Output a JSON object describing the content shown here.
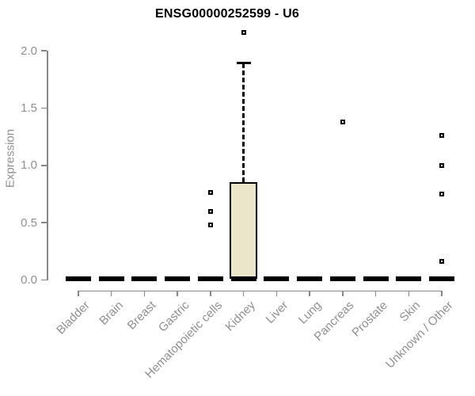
{
  "chart_data": {
    "type": "boxplot",
    "title": "ENSG00000252599 - U6",
    "xlabel": "",
    "ylabel": "Expression",
    "ylim": [
      0.0,
      2.0
    ],
    "yticks": [
      0.0,
      0.5,
      1.0,
      1.5,
      2.0
    ],
    "grid": false,
    "legend": "none",
    "categories": [
      "Bladder",
      "Brain",
      "Breast",
      "Gastric",
      "Hematopoietic cells",
      "Kidney",
      "Liver",
      "Lung",
      "Pancreas",
      "Prostate",
      "Skin",
      "Unknown / Other"
    ],
    "series": [
      {
        "category": "Bladder",
        "whisker_low": 0.0,
        "q1": 0.0,
        "median": 0.01,
        "q3": 0.0,
        "whisker_high": 0.0,
        "outliers": []
      },
      {
        "category": "Brain",
        "whisker_low": 0.0,
        "q1": 0.0,
        "median": 0.01,
        "q3": 0.0,
        "whisker_high": 0.0,
        "outliers": []
      },
      {
        "category": "Breast",
        "whisker_low": 0.0,
        "q1": 0.0,
        "median": 0.01,
        "q3": 0.0,
        "whisker_high": 0.0,
        "outliers": []
      },
      {
        "category": "Gastric",
        "whisker_low": 0.0,
        "q1": 0.0,
        "median": 0.01,
        "q3": 0.0,
        "whisker_high": 0.0,
        "outliers": []
      },
      {
        "category": "Hematopoietic cells",
        "whisker_low": 0.0,
        "q1": 0.0,
        "median": 0.01,
        "q3": 0.0,
        "whisker_high": 0.0,
        "outliers": [
          0.76,
          0.6,
          0.48
        ]
      },
      {
        "category": "Kidney",
        "whisker_low": 0.0,
        "q1": 0.01,
        "median": 0.01,
        "q3": 0.85,
        "whisker_high": 1.89,
        "outliers": [
          2.16
        ]
      },
      {
        "category": "Liver",
        "whisker_low": 0.0,
        "q1": 0.0,
        "median": 0.01,
        "q3": 0.0,
        "whisker_high": 0.0,
        "outliers": []
      },
      {
        "category": "Lung",
        "whisker_low": 0.0,
        "q1": 0.0,
        "median": 0.01,
        "q3": 0.0,
        "whisker_high": 0.0,
        "outliers": []
      },
      {
        "category": "Pancreas",
        "whisker_low": 0.0,
        "q1": 0.0,
        "median": 0.01,
        "q3": 0.0,
        "whisker_high": 0.0,
        "outliers": [
          1.38
        ]
      },
      {
        "category": "Prostate",
        "whisker_low": 0.0,
        "q1": 0.0,
        "median": 0.01,
        "q3": 0.0,
        "whisker_high": 0.0,
        "outliers": []
      },
      {
        "category": "Skin",
        "whisker_low": 0.0,
        "q1": 0.0,
        "median": 0.01,
        "q3": 0.0,
        "whisker_high": 0.0,
        "outliers": []
      },
      {
        "category": "Unknown / Other",
        "whisker_low": 0.0,
        "q1": 0.0,
        "median": 0.01,
        "q3": 0.0,
        "whisker_high": 0.0,
        "outliers": [
          1.26,
          1.0,
          0.75,
          0.16
        ]
      }
    ],
    "colors": {
      "box_fill": "#ebe6ca",
      "box_stroke": "#000000",
      "median": "#000000",
      "whisker": "#000000",
      "outlier_stroke": "#000000",
      "axis": "#878787",
      "tick_labels": "#8f8f8f",
      "title": "#000000",
      "background": "#ffffff"
    }
  }
}
